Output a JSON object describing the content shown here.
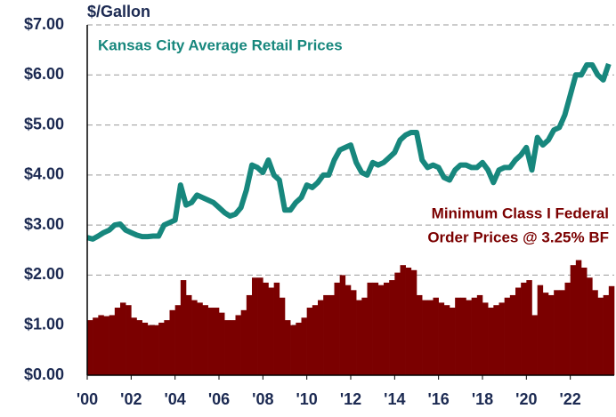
{
  "chart_data": {
    "type": "combo",
    "y_label": "$/Gallon",
    "annotations": [
      "Kansas City Average Retail Prices",
      "Minimum Class I Federal",
      "Order Prices @ 3.25% BF"
    ],
    "x": [
      2000,
      2000.25,
      2000.5,
      2000.75,
      2001,
      2001.25,
      2001.5,
      2001.75,
      2002,
      2002.25,
      2002.5,
      2002.75,
      2003,
      2003.25,
      2003.5,
      2003.75,
      2004,
      2004.25,
      2004.5,
      2004.75,
      2005,
      2005.25,
      2005.5,
      2005.75,
      2006,
      2006.25,
      2006.5,
      2006.75,
      2007,
      2007.25,
      2007.5,
      2007.75,
      2008,
      2008.25,
      2008.5,
      2008.75,
      2009,
      2009.25,
      2009.5,
      2009.75,
      2010,
      2010.25,
      2010.5,
      2010.75,
      2011,
      2011.25,
      2011.5,
      2011.75,
      2012,
      2012.25,
      2012.5,
      2012.75,
      2013,
      2013.25,
      2013.5,
      2013.75,
      2014,
      2014.25,
      2014.5,
      2014.75,
      2015,
      2015.25,
      2015.5,
      2015.75,
      2016,
      2016.25,
      2016.5,
      2016.75,
      2017,
      2017.25,
      2017.5,
      2017.75,
      2018,
      2018.25,
      2018.5,
      2018.75,
      2019,
      2019.25,
      2019.5,
      2019.75,
      2020,
      2020.25,
      2020.5,
      2020.75,
      2021,
      2021.25,
      2021.5,
      2021.75,
      2022,
      2022.25,
      2022.5,
      2022.75,
      2023,
      2023.25,
      2023.5,
      2023.75
    ],
    "series": [
      {
        "name": "Minimum Class I Federal Order Prices @ 3.25% BF",
        "type": "bar",
        "color": "#7b0000",
        "values": [
          1.1,
          1.15,
          1.2,
          1.18,
          1.2,
          1.35,
          1.45,
          1.4,
          1.15,
          1.1,
          1.05,
          1.0,
          1.0,
          1.05,
          1.1,
          1.3,
          1.4,
          1.9,
          1.6,
          1.5,
          1.45,
          1.4,
          1.35,
          1.35,
          1.25,
          1.1,
          1.1,
          1.2,
          1.3,
          1.6,
          1.95,
          1.95,
          1.85,
          1.75,
          1.85,
          1.55,
          1.1,
          1.0,
          1.05,
          1.15,
          1.35,
          1.4,
          1.5,
          1.6,
          1.6,
          1.85,
          2.0,
          1.8,
          1.7,
          1.5,
          1.55,
          1.85,
          1.85,
          1.8,
          1.85,
          1.9,
          2.05,
          2.2,
          2.15,
          2.1,
          1.6,
          1.5,
          1.5,
          1.55,
          1.45,
          1.4,
          1.35,
          1.55,
          1.55,
          1.5,
          1.55,
          1.6,
          1.45,
          1.35,
          1.4,
          1.45,
          1.55,
          1.6,
          1.75,
          1.85,
          1.9,
          1.2,
          1.8,
          1.65,
          1.6,
          1.7,
          1.7,
          1.85,
          2.2,
          2.3,
          2.15,
          1.95,
          1.7,
          1.55,
          1.6,
          1.78
        ]
      },
      {
        "name": "Kansas City Average Retail Prices",
        "type": "line",
        "color": "#17877d",
        "values": [
          2.75,
          2.72,
          2.78,
          2.85,
          2.9,
          3.0,
          3.02,
          2.9,
          2.85,
          2.8,
          2.77,
          2.77,
          2.78,
          2.78,
          3.0,
          3.05,
          3.1,
          3.8,
          3.4,
          3.45,
          3.6,
          3.55,
          3.5,
          3.45,
          3.35,
          3.25,
          3.18,
          3.22,
          3.35,
          3.7,
          4.2,
          4.15,
          4.05,
          4.3,
          4.0,
          3.9,
          3.3,
          3.3,
          3.45,
          3.55,
          3.8,
          3.75,
          3.85,
          4.0,
          4.0,
          4.3,
          4.5,
          4.55,
          4.6,
          4.25,
          4.05,
          4.0,
          4.25,
          4.2,
          4.25,
          4.35,
          4.45,
          4.7,
          4.8,
          4.85,
          4.85,
          4.3,
          4.15,
          4.2,
          4.15,
          3.95,
          3.9,
          4.1,
          4.2,
          4.2,
          4.15,
          4.15,
          4.25,
          4.1,
          3.85,
          4.1,
          4.15,
          4.15,
          4.3,
          4.4,
          4.55,
          4.1,
          4.75,
          4.6,
          4.7,
          4.9,
          4.95,
          5.2,
          5.6,
          6.0,
          6.0,
          6.2,
          6.2,
          6.0,
          5.9,
          6.22
        ]
      }
    ],
    "xlim": [
      2000,
      2024
    ],
    "xticks": [
      {
        "value": 2000,
        "label": "'00"
      },
      {
        "value": 2002,
        "label": "'02"
      },
      {
        "value": 2004,
        "label": "'04"
      },
      {
        "value": 2006,
        "label": "'06"
      },
      {
        "value": 2008,
        "label": "'08"
      },
      {
        "value": 2010,
        "label": "'10"
      },
      {
        "value": 2012,
        "label": "'12"
      },
      {
        "value": 2014,
        "label": "'14"
      },
      {
        "value": 2016,
        "label": "'16"
      },
      {
        "value": 2018,
        "label": "'18"
      },
      {
        "value": 2020,
        "label": "'20"
      },
      {
        "value": 2022,
        "label": "'22"
      }
    ],
    "ylim": [
      0,
      7
    ],
    "yticks": [
      {
        "value": 0,
        "label": "$0.00"
      },
      {
        "value": 1,
        "label": "$1.00"
      },
      {
        "value": 2,
        "label": "$2.00"
      },
      {
        "value": 3,
        "label": "$3.00"
      },
      {
        "value": 4,
        "label": "$4.00"
      },
      {
        "value": 5,
        "label": "$5.00"
      },
      {
        "value": 6,
        "label": "$6.00"
      },
      {
        "value": 7,
        "label": "$7.00"
      }
    ],
    "grid": true
  }
}
